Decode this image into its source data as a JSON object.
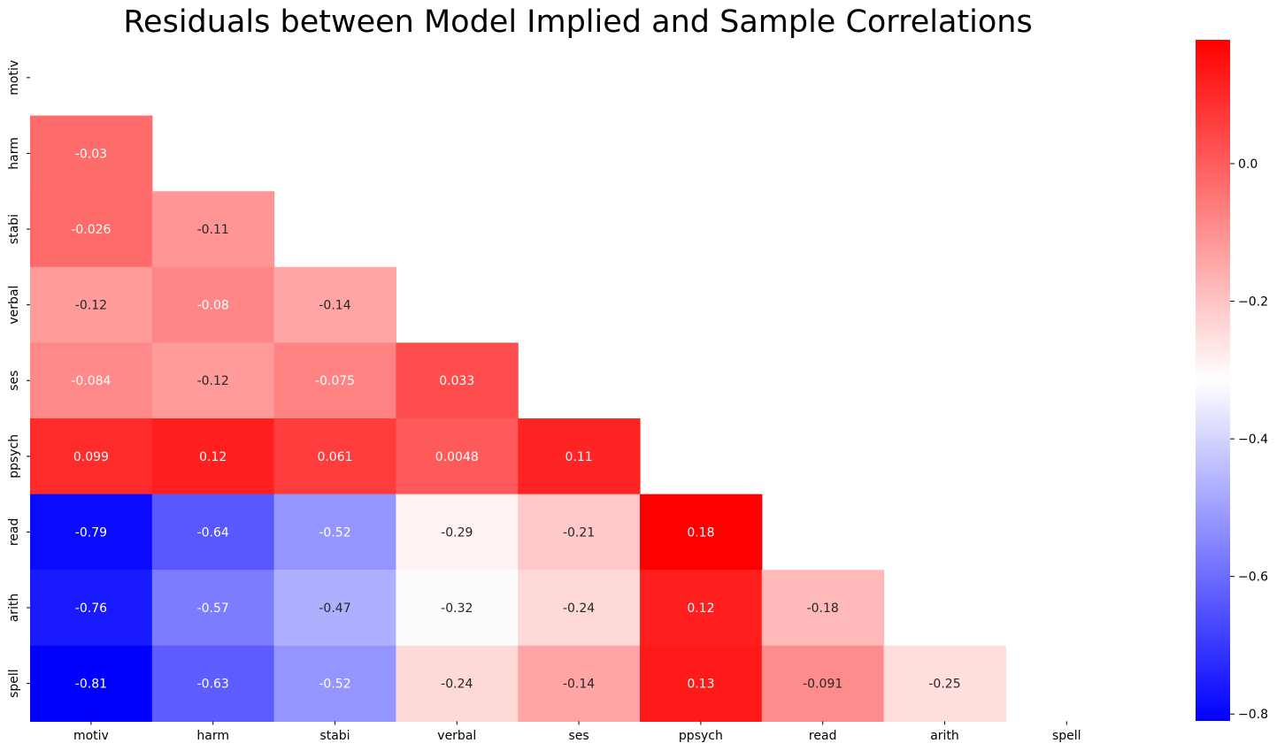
{
  "chart_data": {
    "type": "heatmap",
    "title": "Residuals between Model Implied and Sample Correlations",
    "xlabel": "",
    "ylabel": "",
    "row_labels": [
      "motiv",
      "harm",
      "stabi",
      "verbal",
      "ses",
      "ppsych",
      "read",
      "arith",
      "spell"
    ],
    "col_labels": [
      "motiv",
      "harm",
      "stabi",
      "verbal",
      "ses",
      "ppsych",
      "read",
      "arith",
      "spell"
    ],
    "mask": "upper-triangle-including-diagonal",
    "cells": [
      [],
      [
        {
          "v": -0.03,
          "t": "-0.03"
        }
      ],
      [
        {
          "v": -0.026,
          "t": "-0.026"
        },
        {
          "v": -0.11,
          "t": "-0.11"
        }
      ],
      [
        {
          "v": -0.12,
          "t": "-0.12"
        },
        {
          "v": -0.08,
          "t": "-0.08"
        },
        {
          "v": -0.14,
          "t": "-0.14"
        }
      ],
      [
        {
          "v": -0.084,
          "t": "-0.084"
        },
        {
          "v": -0.12,
          "t": "-0.12"
        },
        {
          "v": -0.075,
          "t": "-0.075"
        },
        {
          "v": 0.033,
          "t": "0.033"
        }
      ],
      [
        {
          "v": 0.099,
          "t": "0.099"
        },
        {
          "v": 0.12,
          "t": "0.12"
        },
        {
          "v": 0.061,
          "t": "0.061"
        },
        {
          "v": 0.0048,
          "t": "0.0048"
        },
        {
          "v": 0.11,
          "t": "0.11"
        }
      ],
      [
        {
          "v": -0.79,
          "t": "-0.79"
        },
        {
          "v": -0.64,
          "t": "-0.64"
        },
        {
          "v": -0.52,
          "t": "-0.52"
        },
        {
          "v": -0.29,
          "t": "-0.29"
        },
        {
          "v": -0.21,
          "t": "-0.21"
        },
        {
          "v": 0.18,
          "t": "0.18"
        }
      ],
      [
        {
          "v": -0.76,
          "t": "-0.76"
        },
        {
          "v": -0.57,
          "t": "-0.57"
        },
        {
          "v": -0.47,
          "t": "-0.47"
        },
        {
          "v": -0.32,
          "t": "-0.32"
        },
        {
          "v": -0.24,
          "t": "-0.24"
        },
        {
          "v": 0.12,
          "t": "0.12"
        },
        {
          "v": -0.18,
          "t": "-0.18"
        }
      ],
      [
        {
          "v": -0.81,
          "t": "-0.81"
        },
        {
          "v": -0.63,
          "t": "-0.63"
        },
        {
          "v": -0.52,
          "t": "-0.52"
        },
        {
          "v": -0.24,
          "t": "-0.24"
        },
        {
          "v": -0.14,
          "t": "-0.14"
        },
        {
          "v": 0.13,
          "t": "0.13"
        },
        {
          "v": -0.091,
          "t": "-0.091"
        },
        {
          "v": -0.25,
          "t": "-0.25"
        }
      ]
    ],
    "colormap": {
      "name": "bwr",
      "min": -0.81,
      "max": 0.18,
      "center": -0.315,
      "low_color": "#0000ff",
      "mid_color": "#ffffff",
      "high_color": "#ff0000"
    },
    "colorbar": {
      "ticks": [
        0.0,
        -0.2,
        -0.4,
        -0.6,
        -0.8
      ],
      "tick_labels": [
        "0.0",
        "−0.2",
        "−0.4",
        "−0.6",
        "−0.8"
      ]
    },
    "grid": false,
    "legend": "colorbar-right"
  }
}
